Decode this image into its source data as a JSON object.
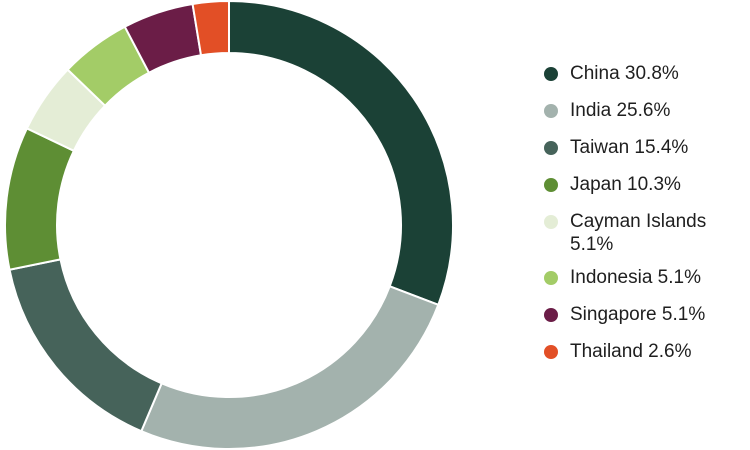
{
  "chart_data": {
    "type": "pie",
    "donut": true,
    "title": "",
    "legend_position": "right",
    "slices": [
      {
        "label": "China",
        "value": 30.8,
        "display": "China 30.8%",
        "color": "#1b4136"
      },
      {
        "label": "India",
        "value": 25.6,
        "display": "India 25.6%",
        "color": "#a3b2ad"
      },
      {
        "label": "Taiwan",
        "value": 15.4,
        "display": "Taiwan 15.4%",
        "color": "#46635a"
      },
      {
        "label": "Japan",
        "value": 10.3,
        "display": "Japan 10.3%",
        "color": "#5e8e34"
      },
      {
        "label": "Cayman Islands",
        "value": 5.1,
        "display": "Cayman Islands 5.1%",
        "color": "#e4edd6"
      },
      {
        "label": "Indonesia",
        "value": 5.1,
        "display": "Indonesia 5.1%",
        "color": "#a3cc67"
      },
      {
        "label": "Singapore",
        "value": 5.1,
        "display": "Singapore 5.1%",
        "color": "#6b1d47"
      },
      {
        "label": "Thailand",
        "value": 2.6,
        "display": "Thailand 2.6%",
        "color": "#e24f26"
      }
    ]
  }
}
